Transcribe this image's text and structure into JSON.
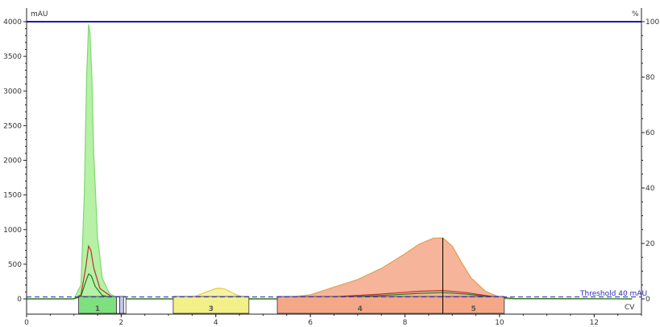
{
  "chart_data": {
    "type": "area",
    "left_axis": {
      "unit": "mAU",
      "range": [
        0,
        4000
      ],
      "ticks": [
        0,
        500,
        1000,
        1500,
        2000,
        2500,
        3000,
        3500,
        4000
      ]
    },
    "right_axis": {
      "unit": "%",
      "range": [
        0,
        100
      ],
      "ticks": [
        0,
        20,
        40,
        60,
        80,
        100
      ]
    },
    "x_axis": {
      "unit": "CV",
      "range": [
        0,
        13
      ],
      "ticks": [
        0,
        2,
        4,
        6,
        8,
        10,
        12
      ]
    },
    "threshold": {
      "label": "Threshold 40 mAU",
      "value": 40
    },
    "gradient_percent": 100,
    "fractions": [
      {
        "label": "1",
        "x_start": 1.1,
        "x_end": 1.9,
        "color": "#7ee07e"
      },
      {
        "label": "",
        "x_start": 1.9,
        "x_end": 1.97,
        "color": "#ffffff"
      },
      {
        "label": "",
        "x_start": 1.97,
        "x_end": 2.05,
        "color": "#c8c8f0"
      },
      {
        "label": "",
        "x_start": 2.05,
        "x_end": 2.1,
        "color": "#ffffff"
      },
      {
        "label": "3",
        "x_start": 3.1,
        "x_end": 4.7,
        "color": "#f3f08a"
      },
      {
        "label": "4",
        "x_start": 5.3,
        "x_end": 8.8,
        "color": "#f5a888"
      },
      {
        "label": "5",
        "x_start": 8.8,
        "x_end": 10.1,
        "color": "#f5a888"
      }
    ],
    "series": [
      {
        "color": "#7fd870",
        "fill": "#a9ee95",
        "x": [
          0,
          1.0,
          1.15,
          1.22,
          1.27,
          1.31,
          1.34,
          1.38,
          1.42,
          1.5,
          1.6,
          1.75,
          1.9,
          2.1,
          12.8
        ],
        "values": [
          0,
          0,
          200,
          1500,
          3200,
          3960,
          3850,
          3200,
          2100,
          900,
          300,
          80,
          20,
          0,
          0
        ]
      },
      {
        "color": "#e0c850",
        "fill": "#f5f08f",
        "x": [
          3.2,
          3.5,
          3.8,
          4.0,
          4.1,
          4.2,
          4.4,
          4.6,
          4.8
        ],
        "values": [
          0,
          20,
          100,
          150,
          155,
          140,
          70,
          20,
          0
        ]
      },
      {
        "color": "#e0a050",
        "fill": "#f5a888",
        "x": [
          5.3,
          6.0,
          7.0,
          7.5,
          8.0,
          8.3,
          8.6,
          8.8,
          9.0,
          9.2,
          9.4,
          9.7,
          10.0,
          10.3
        ],
        "values": [
          0,
          60,
          280,
          440,
          650,
          790,
          875,
          880,
          760,
          520,
          300,
          110,
          25,
          0
        ]
      },
      {
        "color": "#c03030",
        "fill": "none",
        "x": [
          0,
          1.0,
          1.15,
          1.25,
          1.31,
          1.36,
          1.42,
          1.55,
          1.8,
          2.1,
          5.3,
          6.5,
          7.5,
          8.3,
          8.8,
          9.3,
          9.8,
          10.3,
          12.8
        ],
        "values": [
          0,
          0,
          60,
          450,
          760,
          700,
          450,
          150,
          30,
          0,
          0,
          30,
          70,
          110,
          120,
          90,
          40,
          5,
          0
        ]
      },
      {
        "color": "#1e7e1e",
        "fill": "none",
        "x": [
          0,
          1.0,
          1.15,
          1.25,
          1.31,
          1.37,
          1.45,
          1.6,
          1.85,
          2.1,
          5.3,
          6.5,
          7.5,
          8.3,
          8.8,
          9.3,
          9.8,
          10.3,
          12.8
        ],
        "values": [
          0,
          0,
          40,
          250,
          360,
          330,
          180,
          50,
          10,
          0,
          0,
          20,
          50,
          80,
          90,
          70,
          30,
          5,
          0
        ]
      }
    ]
  },
  "colors": {
    "frame": "#222222",
    "gradient": "#1a1ab0",
    "threshold": "#3a3ac8",
    "divider": "#000000"
  }
}
